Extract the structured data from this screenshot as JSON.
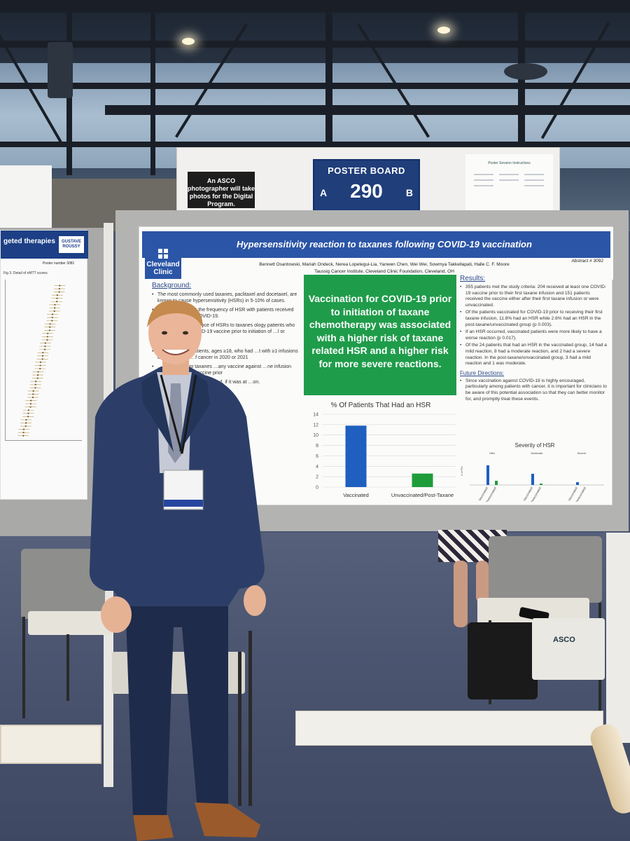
{
  "scene": {
    "header_sign": {
      "photographer_notice": "An ASCO photographer will take photos for the Digital Program.",
      "board_label": "POSTER BOARD",
      "board_number": "290",
      "side_a": "A",
      "side_b": "B",
      "instructions_title": "Poster Session Instructions"
    },
    "left_poster": {
      "title_fragment": "geted therapies",
      "logo": "GUSTAVE ROUSSY",
      "poster_number": "Poster number 3081",
      "figure_caption": "Fig 3. Detail of nMTT scores"
    },
    "tote_bag_text": "ASCO"
  },
  "poster": {
    "logo": "Cleveland Clinic",
    "title": "Hypersensitivity reaction to taxanes following COVID-19 vaccination",
    "authors": "Bennett Osantowski, Mariah Ondeck, Nerea Lopetegui-Lia, Yanwen Chen, Wei Wei, Sowmya Takkellapati, Halle C. F. Moore",
    "affiliation": "Taussig Cancer Institute, Cleveland Clinic Foundation, Cleveland, OH",
    "abstract_number": "Abstract # 3092",
    "background_heading": "Background:",
    "background_items": [
      "The most commonly used taxanes, paclitaxel and docetaxel, are known to cause hypersensitivity (HSRs) in 5-10% of cases.",
      "…d an increase in the frequency of HSR with patients received vaccines against COVID-19.",
      "…ompare the incidence of HSRs to taxanes ology patients who have or have not …ID-19 vaccine prior to initiation of …l or docetaxel."
    ],
    "methods_fragment": "…ulation: adult patients, ages ≥18, who had …t with ≥1 infusions of paclitaxel or …f cancer in 2020 or 2021",
    "methods_fragment_2": "…rate of HSR to taxanes …any vaccine against …ne infusion versus …VID-19 vaccine prior",
    "methods_fragment_3": "…e different vaccine …curred, if it was at …on.",
    "key_finding": "Vaccination for COVID-19 prior to initiation of taxane chemotherapy was associated with a higher risk of taxane related HSR and a higher risk for more severe reactions.",
    "results_heading": "Results:",
    "results_items": [
      "355 patients met the study criteria: 204 received at least one COVID-19 vaccine prior to their first taxane infusion and 151 patients received the vaccine either after their first taxane infusion or were unvaccinated.",
      "Of the patients vaccinated for COVID-19 prior to receiving their first taxane infusion, 11.8% had an HSR while 2.6% had an HSR in the post-taxane/unvaccinated group (p 0.003).",
      "If an HSR occurred, vaccinated patients were more likely to have a worse reaction (p 0.017).",
      "Of the 24 patients that had an HSR in the vaccinated group, 14 had a mild reaction, 8 had a moderate reaction, and 2 had a severe reaction. In the post-taxane/unvaccinated group, 3 had a mild reaction and 1 was moderate."
    ],
    "future_heading": "Future Directions:",
    "future_items": [
      "Since vaccination against COVID-19 is highly encouraged, particularly among patients with cancer, it is important for clinicians to be aware of this potential association so that they can better monitor for, and promptly treat these events."
    ]
  },
  "chart_data": [
    {
      "type": "bar",
      "title": "% Of Patients That Had an HSR",
      "categories": [
        "Vaccinated",
        "Unvaccinated/Post-Taxane"
      ],
      "values": [
        11.8,
        2.6
      ],
      "colors": [
        "#1f5fc0",
        "#1f9c3a"
      ],
      "yticks": [
        0,
        2,
        4,
        6,
        8,
        10,
        12,
        14
      ],
      "ylim": [
        0,
        14
      ],
      "grid": true
    },
    {
      "type": "bar",
      "title": "Severity of HSR",
      "groups": [
        "Mild",
        "Moderate",
        "Severe"
      ],
      "categories": [
        "Vaccinated",
        "Unvaccinated",
        "Vaccinated",
        "Unvaccinated",
        "Vaccinated",
        "Unvaccinated"
      ],
      "values": [
        14,
        3,
        8,
        1,
        2,
        0
      ],
      "colors": [
        "#1f5fc0",
        "#1f9c3a",
        "#1f5fc0",
        "#1f9c3a",
        "#1f5fc0",
        "#1f9c3a"
      ],
      "ylabel": "# of Pts",
      "ylim": [
        0,
        20
      ]
    }
  ]
}
